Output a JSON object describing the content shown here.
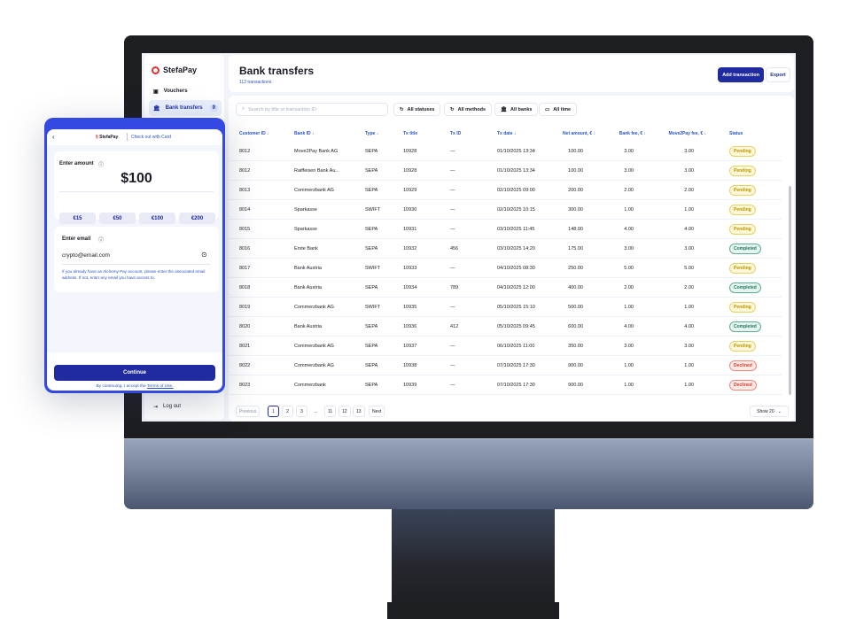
{
  "app": {
    "brand": "StefaPay"
  },
  "sidebar": {
    "items": [
      {
        "label": "Vouchers",
        "icon": "ticket-icon"
      },
      {
        "label": "Bank transfers",
        "icon": "bank-icon",
        "count": "9"
      }
    ],
    "logout": "Log out"
  },
  "header": {
    "title": "Bank transfers",
    "subtitle": "112 transactions",
    "add_label": "Add transaction",
    "export_label": "Export"
  },
  "filters": {
    "search_placeholder": "Search by title or transaction ID",
    "status": "All statuses",
    "methods": "All methods",
    "banks": "All banks",
    "time": "All time"
  },
  "table": {
    "columns": [
      "Customer ID",
      "Bank ID",
      "Type",
      "Tx title",
      "Tx ID",
      "Tx date",
      "Net amount, €",
      "Bank fee, €",
      "Move2Pay fee, €",
      "Status"
    ],
    "rows": [
      [
        "8012",
        "Move2Pay Bank AG",
        "SEPA",
        "10928",
        "—",
        "01/10/2025 13:34",
        "100.00",
        "3.00",
        "3.00",
        "Pending"
      ],
      [
        "8012",
        "Raiffeisen Bank Au...",
        "SEPA",
        "10928",
        "—",
        "01/10/2025 13:34",
        "100.00",
        "3.00",
        "3.00",
        "Pending"
      ],
      [
        "8013",
        "Commerzbank AG",
        "SEPA",
        "10929",
        "—",
        "02/10/2025 09:00",
        "200.00",
        "2.00",
        "2.00",
        "Pending"
      ],
      [
        "8014",
        "Sparkasse",
        "SWIFT",
        "10930",
        "—",
        "02/10/2025 10:15",
        "300.00",
        "1.00",
        "1.00",
        "Pending"
      ],
      [
        "8015",
        "Sparkasse",
        "SEPA",
        "10931",
        "—",
        "03/10/2025 11:45",
        "148.00",
        "4.00",
        "4.00",
        "Pending"
      ],
      [
        "8016",
        "Erste Bank",
        "SEPA",
        "10932",
        "456",
        "03/10/2025 14:20",
        "175.00",
        "3.00",
        "3.00",
        "Completed"
      ],
      [
        "8017",
        "Bank Austria",
        "SWIFT",
        "10933",
        "—",
        "04/10/2025 08:30",
        "250.00",
        "5.00",
        "5.00",
        "Pending"
      ],
      [
        "8018",
        "Bank Austria",
        "SEPA",
        "10934",
        "789",
        "04/10/2025 12:00",
        "400.00",
        "2.00",
        "2.00",
        "Completed"
      ],
      [
        "8019",
        "Commerzbank AG",
        "SWIFT",
        "10935",
        "—",
        "05/10/2025 15:10",
        "500.00",
        "1.00",
        "1.00",
        "Pending"
      ],
      [
        "8020",
        "Bank Austria",
        "SEPA",
        "10936",
        "412",
        "05/10/2025 09:45",
        "600.00",
        "4.00",
        "4.00",
        "Completed"
      ],
      [
        "8021",
        "Commerzbank AG",
        "SEPA",
        "10937",
        "—",
        "06/10/2025 11:00",
        "350.00",
        "3.00",
        "3.00",
        "Pending"
      ],
      [
        "8022",
        "Commerzbank AG",
        "SEPA",
        "10938",
        "—",
        "07/10/2025 17:30",
        "900.00",
        "1.00",
        "1.00",
        "Declined"
      ],
      [
        "8023",
        "Commerzbank",
        "SEPA",
        "10939",
        "—",
        "07/10/2025 17:30",
        "900.00",
        "1.00",
        "1.00",
        "Declined"
      ]
    ]
  },
  "status_colors": {
    "Pending": "#c9a800",
    "Completed": "#1f7a64",
    "Declined": "#d9402f"
  },
  "pagination": {
    "prev": "Previous",
    "pages": [
      "1",
      "2",
      "3",
      "...",
      "11",
      "12",
      "13"
    ],
    "current": "1",
    "next": "Next",
    "show": "Show 20"
  },
  "checkout": {
    "brand": "StefaPay",
    "title": "Check out with Card",
    "amount_label": "Enter amount",
    "amount": "$100",
    "chips": [
      "€15",
      "€50",
      "€100",
      "€200"
    ],
    "email_label": "Enter email",
    "email_value": "crypto@email.com",
    "hint": "If you already have an Alchemy Pay account, please enter the associated email address. If not, enter any email you have access to.",
    "continue": "Continue",
    "terms_prefix": "By continuing, I accept the ",
    "terms_link": "Terms of Use."
  },
  "colors": {
    "primary": "#1f2b9e",
    "accent": "#3448e2",
    "brand_red": "#e0312f"
  }
}
